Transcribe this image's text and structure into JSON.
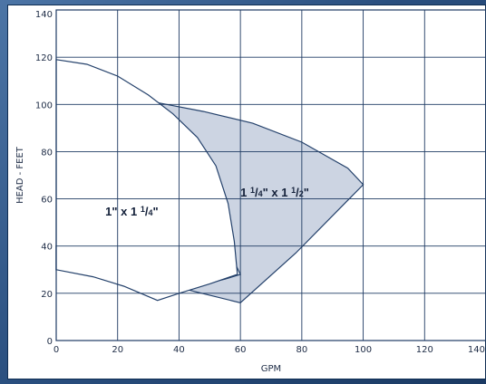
{
  "chart_data": {
    "type": "area",
    "xlabel": "GPM",
    "ylabel": "HEAD - FEET",
    "xlim": [
      0,
      140
    ],
    "ylim": [
      0,
      140
    ],
    "xticks": [
      "0",
      "20",
      "40",
      "60",
      "80",
      "100",
      "120",
      "140"
    ],
    "yticks": [
      "0",
      "20",
      "40",
      "60",
      "80",
      "100",
      "120",
      "140"
    ],
    "grid": true,
    "series": [
      {
        "name": "1 ¼\" x 1 ½\"",
        "color": "#ccd4e2",
        "points": [
          [
            0,
            40
          ],
          [
            0,
            30
          ],
          [
            11,
            30
          ],
          [
            38,
            23
          ],
          [
            60,
            16
          ],
          [
            78,
            37
          ],
          [
            100,
            66
          ],
          [
            95,
            73
          ],
          [
            80,
            84
          ],
          [
            64,
            92
          ],
          [
            48,
            97
          ],
          [
            36,
            100
          ],
          [
            32,
            101
          ],
          [
            30,
            100
          ],
          [
            34,
            95
          ],
          [
            40,
            83
          ],
          [
            46,
            68
          ],
          [
            52,
            50
          ],
          [
            57,
            36
          ],
          [
            60,
            28
          ],
          [
            55,
            26
          ],
          [
            45,
            23
          ],
          [
            38,
            22
          ],
          [
            33,
            18
          ]
        ]
      },
      {
        "name": "1\" x 1 ¼\"",
        "color": "#ffffff",
        "points": [
          [
            0,
            40
          ],
          [
            4,
            38
          ],
          [
            12,
            34
          ],
          [
            20,
            31
          ],
          [
            29,
            28
          ],
          [
            29,
            28
          ],
          [
            20,
            29
          ],
          [
            11,
            30
          ],
          [
            0,
            30
          ]
        ]
      },
      {
        "name": "1\" x 1 ¼\"",
        "color": "#ffffff",
        "points": [
          [
            0,
            119
          ],
          [
            10,
            117
          ],
          [
            20,
            112
          ],
          [
            30,
            104
          ],
          [
            38,
            96
          ],
          [
            46,
            86
          ],
          [
            52,
            74
          ],
          [
            56,
            58
          ],
          [
            58,
            42
          ],
          [
            59,
            28
          ],
          [
            50,
            24
          ],
          [
            40,
            20
          ],
          [
            33,
            17
          ],
          [
            22,
            23
          ],
          [
            12,
            27
          ],
          [
            0,
            30
          ],
          [
            0,
            40
          ]
        ]
      }
    ],
    "annotations": [
      {
        "text": "1\" x 1 ",
        "frac": "1/4",
        "suffix": "\"",
        "x": 16,
        "y": 53
      },
      {
        "text": "1 ",
        "frac": "1/4",
        "mid": "\" x 1 ",
        "frac2": "1/2",
        "suffix": "\"",
        "x": 60,
        "y": 61
      }
    ]
  }
}
